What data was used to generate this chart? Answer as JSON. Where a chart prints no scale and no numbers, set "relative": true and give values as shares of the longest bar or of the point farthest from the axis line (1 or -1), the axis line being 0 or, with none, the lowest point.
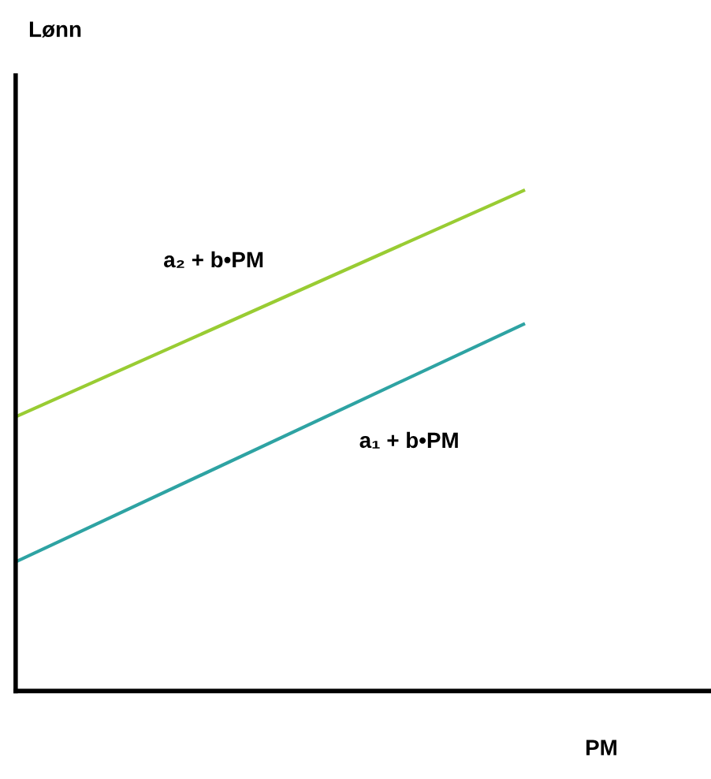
{
  "chart_data": {
    "type": "line",
    "relative": true,
    "xlabel": "PM",
    "annotations": [
      "Lønn"
    ],
    "categories": [
      null,
      null
    ],
    "series": [
      {
        "name": "a₂ + b•PM",
        "color": "#99cc33",
        "values": [
          0.548,
          1
        ]
      },
      {
        "name": "a₁ + b•PM",
        "color": "#2ea3a3",
        "values": [
          0.258,
          0.733
        ]
      }
    ],
    "legend": false,
    "marker": "none",
    "line_style": "solid"
  }
}
